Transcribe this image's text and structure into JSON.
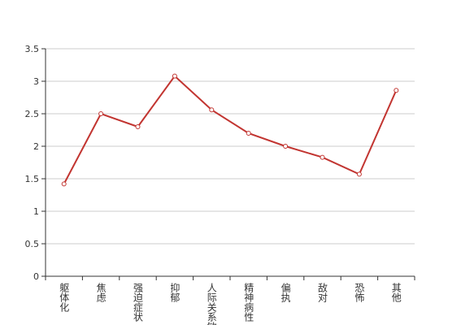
{
  "chart_data": {
    "type": "line",
    "categories": [
      "躯体化",
      "焦虑",
      "强迫症状",
      "抑郁",
      "人际关系敏感",
      "精神病性",
      "偏执",
      "敌对",
      "恐怖",
      "其他"
    ],
    "series": [
      {
        "color": "#c23531",
        "values": [
          1.42,
          2.5,
          2.3,
          3.08,
          2.56,
          2.2,
          2.0,
          1.83,
          1.57,
          2.86
        ]
      }
    ],
    "ylim": [
      0,
      3.5
    ],
    "yticks": [
      0,
      0.5,
      1,
      1.5,
      2,
      2.5,
      3,
      3.5
    ],
    "grid": true
  }
}
